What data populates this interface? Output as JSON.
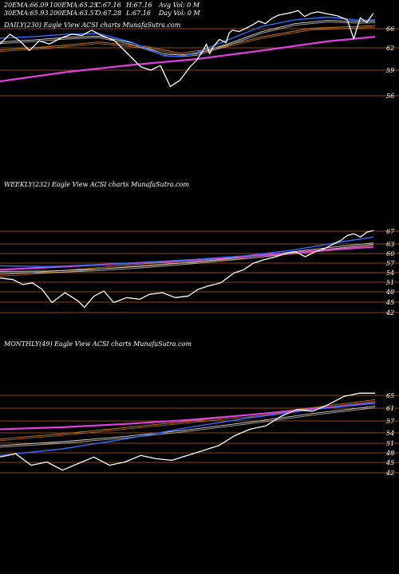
{
  "header": {
    "row1": [
      {
        "label": "20EMA:",
        "value": "66.09"
      },
      {
        "label": "100EMA:",
        "value": "65.25"
      },
      {
        "label": "C:",
        "value": "67.16"
      },
      {
        "label": "H:",
        "value": "67.16"
      },
      {
        "label": "Avg Vol:",
        "value": "0  M"
      }
    ],
    "row2": [
      {
        "label": "30EMA:",
        "value": "65.93"
      },
      {
        "label": "200EMA:",
        "value": "63.57"
      },
      {
        "label": "O:",
        "value": "67.28"
      },
      {
        "label": "L:",
        "value": "67.16"
      },
      {
        "label": "Day Vol:",
        "value": "0  M"
      }
    ]
  },
  "colors": {
    "background": "#000000",
    "price": "#ffffff",
    "ema_blue": "#2f6cff",
    "ema_magenta": "#e040e0",
    "grid": "#b8601e",
    "ema_orange": "#d08020",
    "ema_white": "#d8d8d8"
  },
  "chart_data": [
    {
      "type": "line",
      "title": "DAILY(230) Eagle   View ACSI charts MunafaSutra.com",
      "yticks": [
        "66",
        "62",
        "59",
        "56"
      ],
      "ylim": [
        54,
        68
      ],
      "n": 230,
      "series": [
        {
          "role": "price",
          "x": [
            0,
            6,
            12,
            18,
            24,
            30,
            38,
            44,
            50,
            56,
            62,
            70,
            78,
            86,
            92,
            98,
            104,
            110,
            116,
            120,
            124,
            126,
            128,
            130,
            134,
            138,
            140,
            142,
            146,
            150,
            154,
            158,
            162,
            166,
            170,
            174,
            178,
            182,
            186,
            190,
            194,
            200,
            206,
            212,
            216,
            220,
            224,
            228
          ],
          "values": [
            62.5,
            64,
            63,
            61.5,
            63,
            62.5,
            63.5,
            64,
            63.8,
            64.6,
            63.8,
            63,
            61,
            59,
            58.5,
            59.2,
            56,
            57,
            59,
            60,
            61.5,
            62.5,
            61,
            62,
            63.2,
            62.7,
            64.2,
            64.6,
            64.4,
            64.9,
            65.4,
            66,
            65.6,
            66.4,
            66.9,
            67.1,
            67.3,
            67.6,
            66.7,
            67.2,
            67.4,
            67.1,
            66.8,
            66.2,
            63.3,
            66.5,
            65.8,
            67.2
          ]
        },
        {
          "role": "ema_blue",
          "x": [
            0,
            20,
            40,
            60,
            80,
            100,
            110,
            120,
            140,
            160,
            180,
            200,
            220,
            229
          ],
          "values": [
            63.4,
            63.6,
            64,
            64.1,
            62.8,
            60.7,
            60.6,
            61.2,
            63.2,
            65.2,
            66.2,
            66.6,
            66.1,
            66.2
          ]
        },
        {
          "role": "ema_white",
          "x": [
            0,
            20,
            40,
            60,
            80,
            100,
            110,
            120,
            140,
            160,
            180,
            200,
            220,
            229
          ],
          "values": [
            62.8,
            63.1,
            63.5,
            63.7,
            62.7,
            61,
            60.8,
            61,
            62.6,
            64.4,
            65.6,
            66.1,
            65.9,
            66
          ]
        },
        {
          "role": "ema_orange",
          "x": [
            0,
            30,
            60,
            90,
            110,
            130,
            160,
            190,
            220,
            229
          ],
          "values": [
            61.6,
            62.1,
            62.8,
            62.1,
            61.1,
            61.8,
            63.6,
            64.9,
            65.2,
            65.3
          ]
        },
        {
          "role": "ema_magenta",
          "x": [
            0,
            40,
            80,
            120,
            160,
            200,
            229
          ],
          "values": [
            56.8,
            58.2,
            59.3,
            60.2,
            61.5,
            62.9,
            63.6
          ]
        }
      ]
    },
    {
      "type": "line",
      "title": "WEEKLY(232) Eagle   View ACSI charts MunafaSutra.com",
      "yticks": [
        "67",
        "63",
        "60",
        "57",
        "54",
        "51",
        "48",
        "45",
        "42"
      ],
      "ylim": [
        40,
        68
      ],
      "n": 232,
      "series": [
        {
          "role": "price",
          "x": [
            0,
            8,
            14,
            20,
            26,
            32,
            40,
            48,
            52,
            58,
            64,
            70,
            78,
            86,
            92,
            100,
            108,
            116,
            122,
            128,
            136,
            144,
            150,
            156,
            162,
            170,
            176,
            182,
            188,
            194,
            200,
            206,
            210,
            214,
            218,
            222,
            226,
            230
          ],
          "values": [
            52.5,
            52,
            50.5,
            51,
            49,
            45,
            48,
            45.5,
            43.5,
            47,
            48.5,
            45,
            46.5,
            46,
            47.5,
            48,
            46.5,
            47,
            49,
            50,
            51,
            54,
            55,
            57,
            58,
            59,
            60,
            60.5,
            59,
            60.5,
            61.5,
            63,
            64,
            65.5,
            66,
            65,
            66.5,
            67
          ]
        },
        {
          "role": "ema_blue",
          "x": [
            0,
            30,
            60,
            90,
            120,
            150,
            180,
            210,
            230
          ],
          "values": [
            56.2,
            56,
            56.5,
            57.3,
            58.2,
            59.2,
            61,
            63.5,
            65
          ]
        },
        {
          "role": "ema_white",
          "x": [
            0,
            30,
            60,
            90,
            120,
            150,
            180,
            210,
            230
          ],
          "values": [
            54.5,
            54.6,
            55.2,
            56.2,
            57.4,
            58.8,
            60.5,
            62.2,
            63.2
          ]
        },
        {
          "role": "ema_orange",
          "x": [
            0,
            40,
            80,
            120,
            160,
            200,
            230
          ],
          "values": [
            53.5,
            54.8,
            56.5,
            57.8,
            59.3,
            61.2,
            62.6
          ]
        },
        {
          "role": "ema_magenta",
          "x": [
            0,
            40,
            80,
            120,
            160,
            200,
            230
          ],
          "values": [
            55,
            56,
            57,
            58,
            59.4,
            61,
            62
          ]
        }
      ]
    },
    {
      "type": "line",
      "title": "MONTHLY(49) Eagle   View ACSI charts MunafaSutra.com",
      "yticks": [
        "65",
        "61",
        "57",
        "54",
        "51",
        "48",
        "45",
        "42"
      ],
      "ylim": [
        40,
        68
      ],
      "n": 49,
      "series": [
        {
          "role": "price",
          "x": [
            0,
            2,
            4,
            6,
            8,
            10,
            12,
            14,
            16,
            18,
            20,
            22,
            24,
            26,
            28,
            30,
            32,
            34,
            36,
            38,
            40,
            42,
            44,
            46,
            48
          ],
          "values": [
            46.5,
            47.5,
            44,
            45,
            42.5,
            44.5,
            46.5,
            44,
            45,
            47,
            46,
            45.5,
            47,
            48.5,
            50,
            53,
            55,
            56,
            59,
            61,
            60.5,
            62.5,
            65,
            66,
            66
          ]
        },
        {
          "role": "ema_blue",
          "x": [
            0,
            8,
            16,
            24,
            32,
            40,
            48
          ],
          "values": [
            47,
            49,
            52,
            55.5,
            58.5,
            61,
            63
          ]
        },
        {
          "role": "ema_white",
          "x": [
            0,
            8,
            16,
            24,
            32,
            40,
            48
          ],
          "values": [
            50,
            51.2,
            52.8,
            54.8,
            57.2,
            59.8,
            62
          ]
        },
        {
          "role": "ema_orange",
          "x": [
            0,
            8,
            16,
            24,
            32,
            40,
            48
          ],
          "values": [
            52,
            53.6,
            55.5,
            57.4,
            59.3,
            61.6,
            64
          ]
        },
        {
          "role": "ema_magenta",
          "x": [
            0,
            8,
            16,
            24,
            32,
            40,
            48
          ],
          "values": [
            55,
            55.6,
            56.6,
            57.8,
            59.4,
            61.2,
            63
          ]
        }
      ]
    }
  ]
}
